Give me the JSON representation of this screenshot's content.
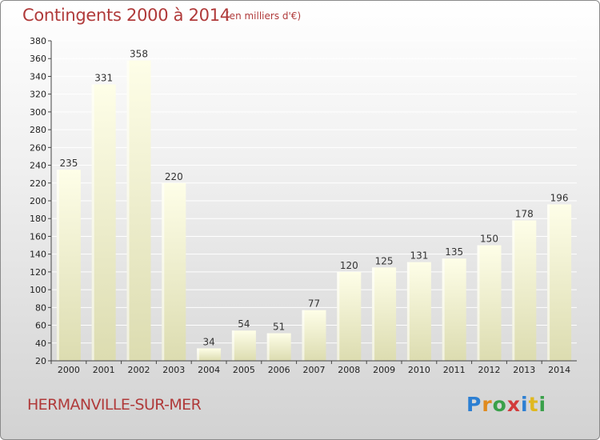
{
  "header": {
    "title": "Contingents 2000 à 2014",
    "subtitle": "(en milliers d'€)"
  },
  "footer": {
    "commune": "HERMANVILLE-SUR-MER",
    "logo_text": "Proxiti"
  },
  "colors": {
    "title": "#b03a3a",
    "bar_top": "#fefee8",
    "bar_bottom": "#dcdcb0",
    "gridline": "#ffffff",
    "axis": "#444444"
  },
  "chart_data": {
    "type": "bar",
    "title": "Contingents 2000 à 2014",
    "subtitle": "(en milliers d'€)",
    "categories": [
      "2000",
      "2001",
      "2002",
      "2003",
      "2004",
      "2005",
      "2006",
      "2007",
      "2008",
      "2009",
      "2010",
      "2011",
      "2012",
      "2013",
      "2014"
    ],
    "values": [
      235,
      331,
      358,
      220,
      34,
      54,
      51,
      77,
      120,
      125,
      131,
      135,
      150,
      178,
      196
    ],
    "ylim": [
      20,
      380
    ],
    "yticks": [
      20,
      40,
      60,
      80,
      100,
      120,
      140,
      160,
      180,
      200,
      220,
      240,
      260,
      280,
      300,
      320,
      340,
      360,
      380
    ],
    "grid": true,
    "xlabel": "",
    "ylabel": ""
  }
}
